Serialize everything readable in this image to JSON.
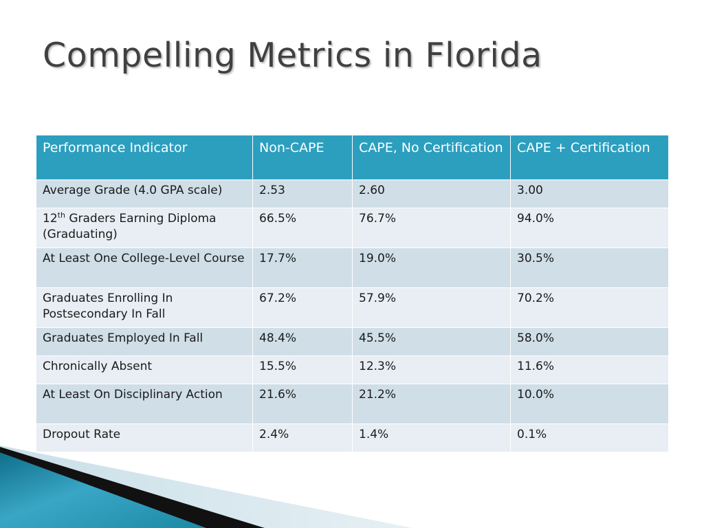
{
  "slide": {
    "title": "Compelling Metrics in Florida"
  },
  "table": {
    "headers": [
      "Performance Indicator",
      "Non-CAPE",
      "CAPE, No Certification",
      "CAPE + Certification"
    ],
    "rows": [
      {
        "indicator": "Average Grade (4.0 GPA scale)",
        "non_cape": "2.53",
        "cape_no_cert": "2.60",
        "cape_cert": "3.00"
      },
      {
        "indicator_prefix": "12",
        "indicator_sup": "th",
        "indicator": " Graders Earning Diploma (Graduating)",
        "non_cape": "66.5%",
        "cape_no_cert": "76.7%",
        "cape_cert": "94.0%"
      },
      {
        "indicator": "At Least One College-Level Course",
        "non_cape": "17.7%",
        "cape_no_cert": "19.0%",
        "cape_cert": "30.5%"
      },
      {
        "indicator": "Graduates Enrolling In Postsecondary In Fall",
        "non_cape": "67.2%",
        "cape_no_cert": "57.9%",
        "cape_cert": "70.2%"
      },
      {
        "indicator": "Graduates Employed In Fall",
        "non_cape": "48.4%",
        "cape_no_cert": "45.5%",
        "cape_cert": "58.0%"
      },
      {
        "indicator": "Chronically Absent",
        "non_cape": "15.5%",
        "cape_no_cert": "12.3%",
        "cape_cert": "11.6%"
      },
      {
        "indicator": "At Least On Disciplinary Action",
        "non_cape": "21.6%",
        "cape_no_cert": "21.2%",
        "cape_cert": "10.0%"
      },
      {
        "indicator": "Dropout Rate",
        "non_cape": "2.4%",
        "cape_no_cert": "1.4%",
        "cape_cert": "0.1%"
      }
    ]
  },
  "colors": {
    "header_bg": "#2c9fbf",
    "row_odd_bg": "#cfdee7",
    "row_even_bg": "#e8eef3",
    "title_text": "#404040",
    "decoration_teal": "#1b8aa6",
    "decoration_dark": "#111111"
  }
}
